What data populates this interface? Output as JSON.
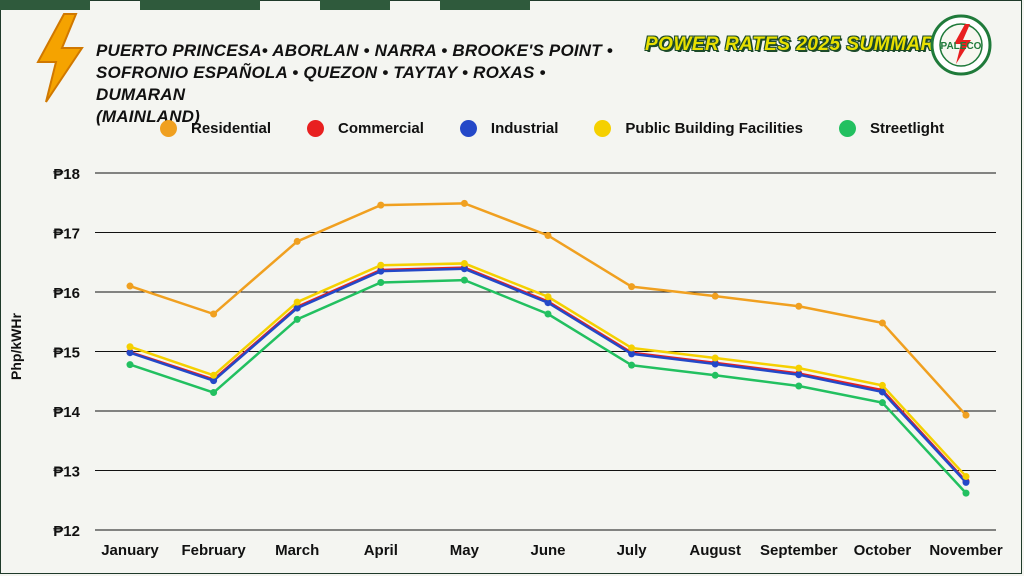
{
  "header": {
    "title_line1": "PUERTO PRINCESA• ABORLAN • NARRA • BROOKE'S POINT •",
    "title_line2": "SOFRONIO ESPAÑOLA • QUEZON • TAYTAY • ROXAS • DUMARAN",
    "title_line3": "(MAINLAND)",
    "summary": "POWER RATES 2025 SUMMARY",
    "logo_text": "PALECO",
    "logo_ring_text": "PALAWAN ELECTRIC COOPERATIVE"
  },
  "colors": {
    "Residential": "#f0a020",
    "Commercial": "#e82020",
    "Industrial": "#2448c8",
    "Public Building Facilities": "#f5d000",
    "Streetlight": "#22c060"
  },
  "chart_data": {
    "type": "line",
    "title": "",
    "ylabel": "Php/kWHr",
    "xlabel": "",
    "categories": [
      "January",
      "February",
      "March",
      "April",
      "May",
      "June",
      "July",
      "August",
      "September",
      "October",
      "November"
    ],
    "yticks": [
      "₱12",
      "₱13",
      "₱14",
      "₱15",
      "₱16",
      "₱17",
      "₱18"
    ],
    "ylim": [
      12,
      18
    ],
    "grid": true,
    "legend_position": "top",
    "series": [
      {
        "name": "Residential",
        "values": [
          16.1,
          15.63,
          16.85,
          17.46,
          17.49,
          16.95,
          16.09,
          15.93,
          15.76,
          15.48,
          13.93
        ]
      },
      {
        "name": "Commercial",
        "values": [
          14.99,
          14.53,
          15.75,
          16.37,
          16.41,
          15.84,
          14.98,
          14.81,
          14.63,
          14.35,
          12.82
        ]
      },
      {
        "name": "Industrial",
        "values": [
          14.98,
          14.51,
          15.73,
          16.35,
          16.39,
          15.82,
          14.96,
          14.79,
          14.61,
          14.32,
          12.8
        ]
      },
      {
        "name": "Public Building Facilities",
        "values": [
          15.08,
          14.6,
          15.83,
          16.45,
          16.48,
          15.92,
          15.06,
          14.89,
          14.72,
          14.43,
          12.9
        ]
      },
      {
        "name": "Streetlight",
        "values": [
          14.78,
          14.31,
          15.54,
          16.16,
          16.2,
          15.63,
          14.77,
          14.6,
          14.42,
          14.14,
          12.62
        ]
      }
    ]
  }
}
